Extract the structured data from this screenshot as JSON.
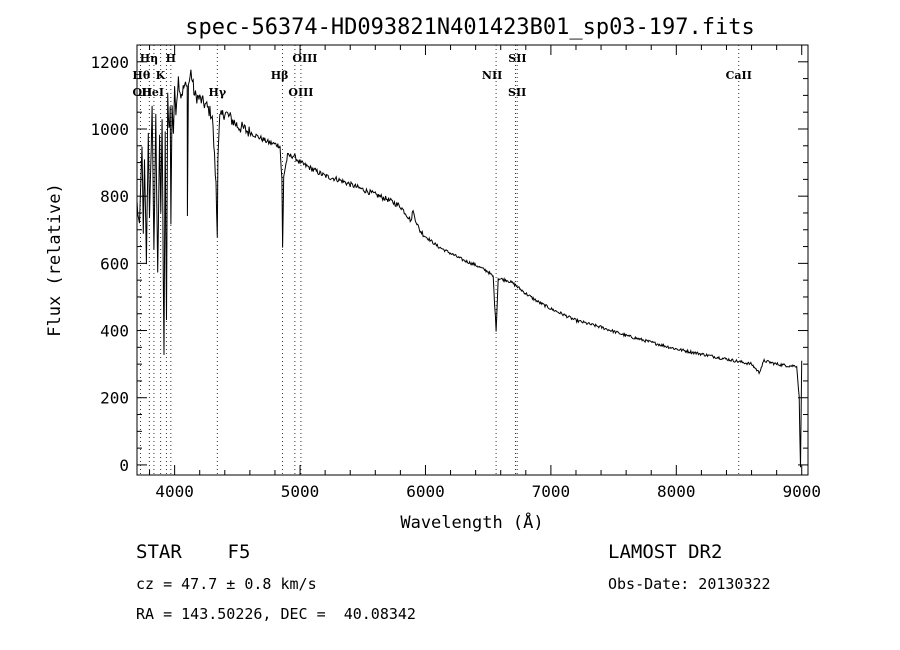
{
  "chart_data": {
    "type": "line",
    "title": "spec-56374-HD093821N401423B01_sp03-197.fits",
    "xlabel": "Wavelength (Å)",
    "ylabel": "Flux (relative)",
    "xlim": [
      3700,
      9050
    ],
    "ylim": [
      -30,
      1250
    ],
    "xticks": [
      4000,
      5000,
      6000,
      7000,
      8000,
      9000
    ],
    "yticks": [
      0,
      200,
      400,
      600,
      800,
      1000,
      1200
    ],
    "spectrum": {
      "x": [
        3700,
        3720,
        3740,
        3750,
        3760,
        3775,
        3790,
        3800,
        3820,
        3835,
        3850,
        3865,
        3880,
        3890,
        3900,
        3915,
        3925,
        3935,
        3945,
        3955,
        3965,
        3970,
        3980,
        3990,
        4000,
        4010,
        4030,
        4050,
        4080,
        4100,
        4102,
        4110,
        4130,
        4160,
        4200,
        4250,
        4300,
        4330,
        4340,
        4345,
        4360,
        4400,
        4450,
        4500,
        4550,
        4600,
        4650,
        4700,
        4750,
        4800,
        4840,
        4855,
        4861,
        4870,
        4900,
        4950,
        5000,
        5100,
        5200,
        5300,
        5400,
        5500,
        5600,
        5700,
        5800,
        5850,
        5890,
        5895,
        5950,
        6000,
        6100,
        6200,
        6300,
        6400,
        6500,
        6540,
        6563,
        6580,
        6650,
        6700,
        6800,
        6900,
        7000,
        7200,
        7400,
        7600,
        7800,
        8000,
        8200,
        8400,
        8600,
        8660,
        8700,
        8800,
        8900,
        8960,
        8980,
        8990,
        9000
      ],
      "y": [
        780,
        700,
        960,
        680,
        900,
        610,
        1000,
        720,
        1070,
        650,
        1030,
        560,
        990,
        750,
        1030,
        330,
        980,
        430,
        1100,
        1000,
        1060,
        720,
        1080,
        990,
        1110,
        1060,
        1150,
        1100,
        1130,
        1120,
        760,
        1130,
        1170,
        1100,
        1090,
        1070,
        1040,
        830,
        680,
        930,
        1030,
        1050,
        1030,
        1010,
        1000,
        990,
        980,
        970,
        960,
        955,
        950,
        850,
        645,
        860,
        920,
        920,
        900,
        880,
        860,
        850,
        835,
        820,
        805,
        790,
        770,
        745,
        725,
        760,
        700,
        680,
        650,
        630,
        610,
        595,
        575,
        560,
        400,
        555,
        550,
        540,
        510,
        485,
        465,
        430,
        410,
        385,
        365,
        345,
        330,
        315,
        300,
        275,
        310,
        300,
        295,
        295,
        200,
        -10,
        310
      ],
      "color": "#000000"
    },
    "lines": [
      {
        "label": "Hη",
        "x": 3835
      },
      {
        "label": "H",
        "x": 3970
      },
      {
        "label": "Hθ",
        "x": 3798
      },
      {
        "label": "K",
        "x": 3934
      },
      {
        "label": "OII",
        "x": 3727
      },
      {
        "label": "HeI",
        "x": 3889
      },
      {
        "label": "Hγ",
        "x": 4340
      },
      {
        "label": "OIII",
        "x": 4959
      },
      {
        "label": "Hβ",
        "x": 4861
      },
      {
        "label": "OIII",
        "x": 5007
      },
      {
        "label": "NII",
        "x": 6563
      },
      {
        "label": "SII",
        "x": 6717
      },
      {
        "label": "SII",
        "x": 6731
      },
      {
        "label": "CaII",
        "x": 8498
      }
    ]
  },
  "footer": {
    "class_line": "STAR    F5",
    "survey": "LAMOST DR2",
    "cz": "cz = 47.7 ± 0.8 km/s",
    "obs_date": "Obs-Date: 20130322",
    "radec": "RA = 143.50226, DEC =  40.08342"
  }
}
